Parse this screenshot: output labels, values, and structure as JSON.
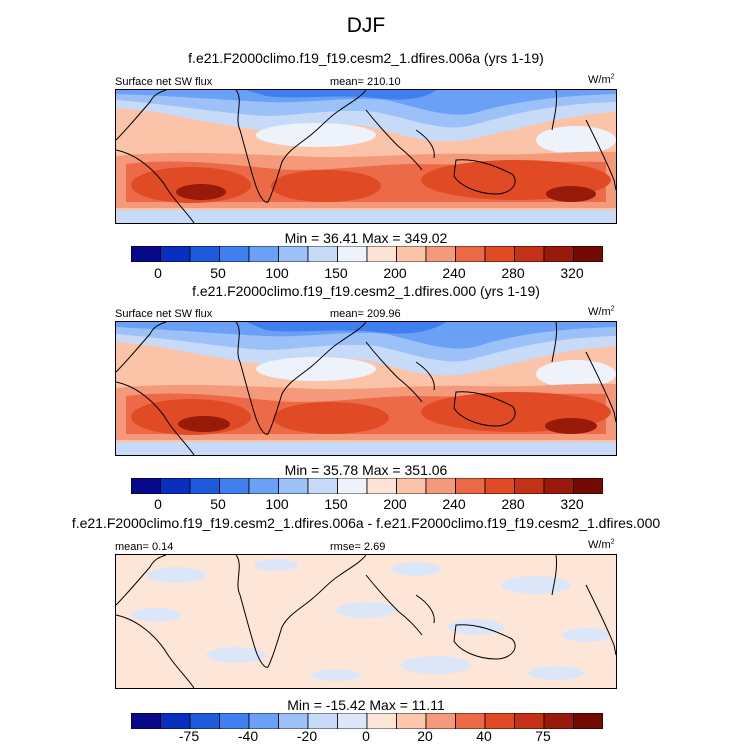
{
  "title": "DJF",
  "units": "W/m",
  "units_sup": "2",
  "colors": {
    "full_field": [
      "#08088a",
      "#0a2fbf",
      "#1e5bdc",
      "#3f7fef",
      "#6aa0f5",
      "#9bc1f8",
      "#c7dbf9",
      "#eef3fb",
      "#fde3d6",
      "#fbc3a8",
      "#f49a7a",
      "#ec6a48",
      "#e04a24",
      "#c33216",
      "#981a0a",
      "#720a02"
    ],
    "difference": [
      "#08088a",
      "#0a2fbf",
      "#1e5bdc",
      "#3f7fef",
      "#6aa0f5",
      "#9bc1f8",
      "#c7dbf9",
      "#dbe7f9",
      "#fde6d8",
      "#fbc7ad",
      "#f49a7a",
      "#ec6a48",
      "#e04a24",
      "#c33216",
      "#981a0a",
      "#720a02"
    ]
  },
  "panels": [
    {
      "title": "f.e21.F2000climo.f19_f19.cesm2_1.dfires.006a (yrs 1-19)",
      "left_label": "Surface net SW flux",
      "center_label": "mean= 210.10",
      "stats": "Min =  36.41 Max = 349.02",
      "ticks": [
        "0",
        "50",
        "100",
        "150",
        "200",
        "240",
        "280",
        "320"
      ]
    },
    {
      "title": "f.e21.F2000climo.f19_f19.cesm2_1.dfires.000 (yrs 1-19)",
      "left_label": "Surface net SW flux",
      "center_label": "mean= 209.96",
      "stats": "Min =  35.78 Max = 351.06",
      "ticks": [
        "0",
        "50",
        "100",
        "150",
        "200",
        "240",
        "280",
        "320"
      ]
    },
    {
      "title": "f.e21.F2000climo.f19_f19.cesm2_1.dfires.006a - f.e21.F2000climo.f19_f19.cesm2_1.dfires.000",
      "left_label": "mean=   0.14",
      "center_label": "rmse=   2.69",
      "stats": "Min = -15.42 Max =  11.11",
      "ticks": [
        "-75",
        "-40",
        "-20",
        "0",
        "20",
        "40",
        "75"
      ]
    }
  ],
  "chart_data": [
    {
      "type": "heatmap",
      "title": "f.e21.F2000climo.f19_f19.cesm2_1.dfires.006a (yrs 1-19)",
      "variable": "Surface net SW flux",
      "units": "W/m2",
      "mean": 210.1,
      "min": 36.41,
      "max": 349.02,
      "colorbar_levels": [
        0,
        25,
        50,
        75,
        100,
        125,
        150,
        175,
        200,
        220,
        240,
        260,
        280,
        300,
        320
      ],
      "colorbar_labels": [
        0,
        50,
        100,
        150,
        200,
        240,
        280,
        320
      ]
    },
    {
      "type": "heatmap",
      "title": "f.e21.F2000climo.f19_f19.cesm2_1.dfires.000 (yrs 1-19)",
      "variable": "Surface net SW flux",
      "units": "W/m2",
      "mean": 209.96,
      "min": 35.78,
      "max": 351.06,
      "colorbar_levels": [
        0,
        25,
        50,
        75,
        100,
        125,
        150,
        175,
        200,
        220,
        240,
        260,
        280,
        300,
        320
      ],
      "colorbar_labels": [
        0,
        50,
        100,
        150,
        200,
        240,
        280,
        320
      ]
    },
    {
      "type": "heatmap",
      "title": "f.e21.F2000climo.f19_f19.cesm2_1.dfires.006a - f.e21.F2000climo.f19_f19.cesm2_1.dfires.000",
      "units": "W/m2",
      "mean": 0.14,
      "rmse": 2.69,
      "min": -15.42,
      "max": 11.11,
      "colorbar_labels": [
        -75,
        -40,
        -20,
        0,
        20,
        40,
        75
      ]
    }
  ]
}
